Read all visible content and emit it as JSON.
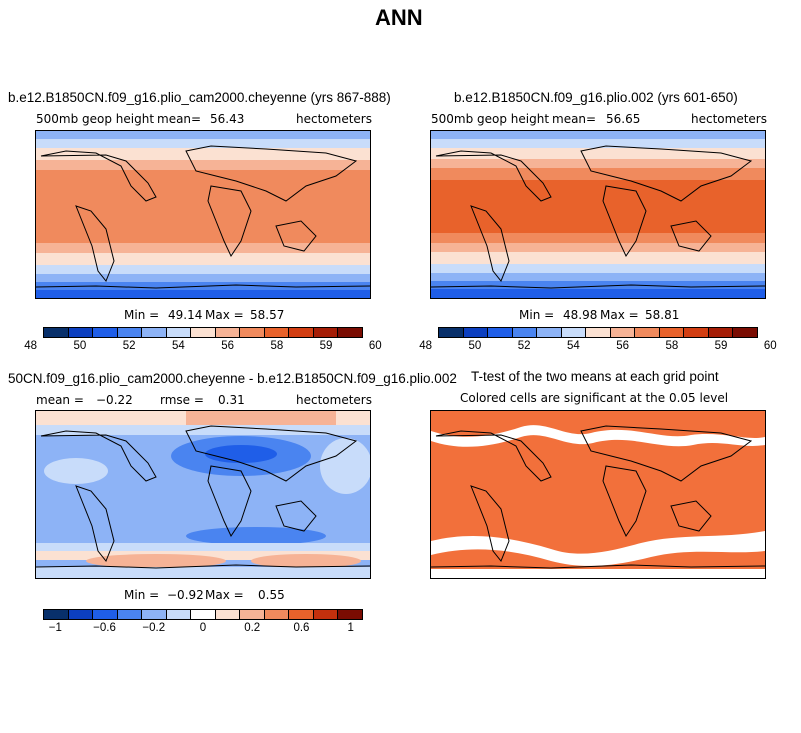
{
  "title": "ANN",
  "panels": {
    "p1": {
      "title": "b.e12.B1850CN.f09_g16.plio_cam2000.cheyenne (yrs 867-888)",
      "field": "500mb geop height",
      "mean_label": "mean=",
      "mean": "56.43",
      "units": "hectometers",
      "min_label": "Min =",
      "min": "49.14",
      "max_label": "Max =",
      "max": "58.57"
    },
    "p2": {
      "title": "b.e12.B1850CN.f09_g16.plio.002 (yrs 601-650)",
      "field": "500mb geop height",
      "mean_label": "mean=",
      "mean": "56.65",
      "units": "hectometers",
      "min_label": "Min =",
      "min": "48.98",
      "max_label": "Max =",
      "max": "58.81"
    },
    "p3": {
      "title": "50CN.f09_g16.plio_cam2000.cheyenne - b.e12.B1850CN.f09_g16.plio.002",
      "mean_label": "mean =",
      "mean": "-0.22",
      "rmse_label": "rmse =",
      "rmse": "0.31",
      "units": "hectometers",
      "min_label": "Min =",
      "min": "-0.92",
      "max_label": "Max =",
      "max": "0.55"
    },
    "p4": {
      "title": "T-test of the two means at each grid point",
      "subtitle": "Colored cells are significant at the 0.05 level"
    }
  },
  "colorbars": {
    "abs": {
      "colors": [
        "#08306b",
        "#0c3fc0",
        "#1f5ee8",
        "#4a84f0",
        "#8db3f6",
        "#c8dcfa",
        "#fbe1d2",
        "#f6b396",
        "#f08a5d",
        "#e8622b",
        "#d23e12",
        "#a51d06",
        "#7a0c02"
      ],
      "labels": [
        "48",
        "50",
        "52",
        "54",
        "56",
        "58",
        "59",
        "60"
      ]
    },
    "diff": {
      "colors": [
        "#08306b",
        "#0c3fc0",
        "#1f5ee8",
        "#4a84f0",
        "#8db3f6",
        "#c8dcfa",
        "#ffffff",
        "#fbe1d2",
        "#f6b396",
        "#f08a5d",
        "#e8622b",
        "#c4300d",
        "#7a0c02"
      ],
      "labels": [
        "-1",
        "-0.6",
        "-0.2",
        "0",
        "0.2",
        "0.6",
        "1"
      ]
    }
  },
  "chart_data": [
    {
      "type": "heatmap",
      "title": "b.e12.B1850CN.f09_g16.plio_cam2000.cheyenne (yrs 867-888)",
      "variable": "500mb geop height",
      "units": "hectometers",
      "mean": 56.43,
      "min": 49.14,
      "max": 58.57,
      "colorbar_ticks": [
        48,
        50,
        52,
        54,
        56,
        58,
        59,
        60
      ],
      "zonal_profile": [
        {
          "lat": 90,
          "value": 51.0
        },
        {
          "lat": 70,
          "value": 52.8
        },
        {
          "lat": 50,
          "value": 55.0
        },
        {
          "lat": 30,
          "value": 57.6
        },
        {
          "lat": 10,
          "value": 58.3
        },
        {
          "lat": -10,
          "value": 58.3
        },
        {
          "lat": -30,
          "value": 57.6
        },
        {
          "lat": -50,
          "value": 55.0
        },
        {
          "lat": -70,
          "value": 51.5
        },
        {
          "lat": -90,
          "value": 49.5
        }
      ]
    },
    {
      "type": "heatmap",
      "title": "b.e12.B1850CN.f09_g16.plio.002 (yrs 601-650)",
      "variable": "500mb geop height",
      "units": "hectometers",
      "mean": 56.65,
      "min": 48.98,
      "max": 58.81,
      "colorbar_ticks": [
        48,
        50,
        52,
        54,
        56,
        58,
        59,
        60
      ],
      "zonal_profile": [
        {
          "lat": 90,
          "value": 51.2
        },
        {
          "lat": 70,
          "value": 53.0
        },
        {
          "lat": 50,
          "value": 55.3
        },
        {
          "lat": 30,
          "value": 57.8
        },
        {
          "lat": 10,
          "value": 58.6
        },
        {
          "lat": -10,
          "value": 58.6
        },
        {
          "lat": -30,
          "value": 57.8
        },
        {
          "lat": -50,
          "value": 55.3
        },
        {
          "lat": -70,
          "value": 51.6
        },
        {
          "lat": -90,
          "value": 49.3
        }
      ]
    },
    {
      "type": "heatmap",
      "title": "50CN.f09_g16.plio_cam2000.cheyenne - b.e12.B1850CN.f09_g16.plio.002",
      "units": "hectometers",
      "mean": -0.22,
      "rmse": 0.31,
      "min": -0.92,
      "max": 0.55,
      "colorbar_ticks": [
        -1,
        -0.6,
        -0.2,
        0,
        0.2,
        0.6,
        1
      ],
      "zonal_profile": [
        {
          "lat": 90,
          "value": 0.1
        },
        {
          "lat": 70,
          "value": -0.1
        },
        {
          "lat": 50,
          "value": -0.35
        },
        {
          "lat": 30,
          "value": -0.3
        },
        {
          "lat": 10,
          "value": -0.25
        },
        {
          "lat": -10,
          "value": -0.25
        },
        {
          "lat": -30,
          "value": -0.3
        },
        {
          "lat": -50,
          "value": -0.2
        },
        {
          "lat": -70,
          "value": 0.3
        },
        {
          "lat": -90,
          "value": 0.0
        }
      ]
    },
    {
      "type": "heatmap",
      "title": "T-test of the two means at each grid point",
      "subtitle": "Colored cells are significant at the 0.05 level",
      "significance_level": 0.05
    }
  ]
}
